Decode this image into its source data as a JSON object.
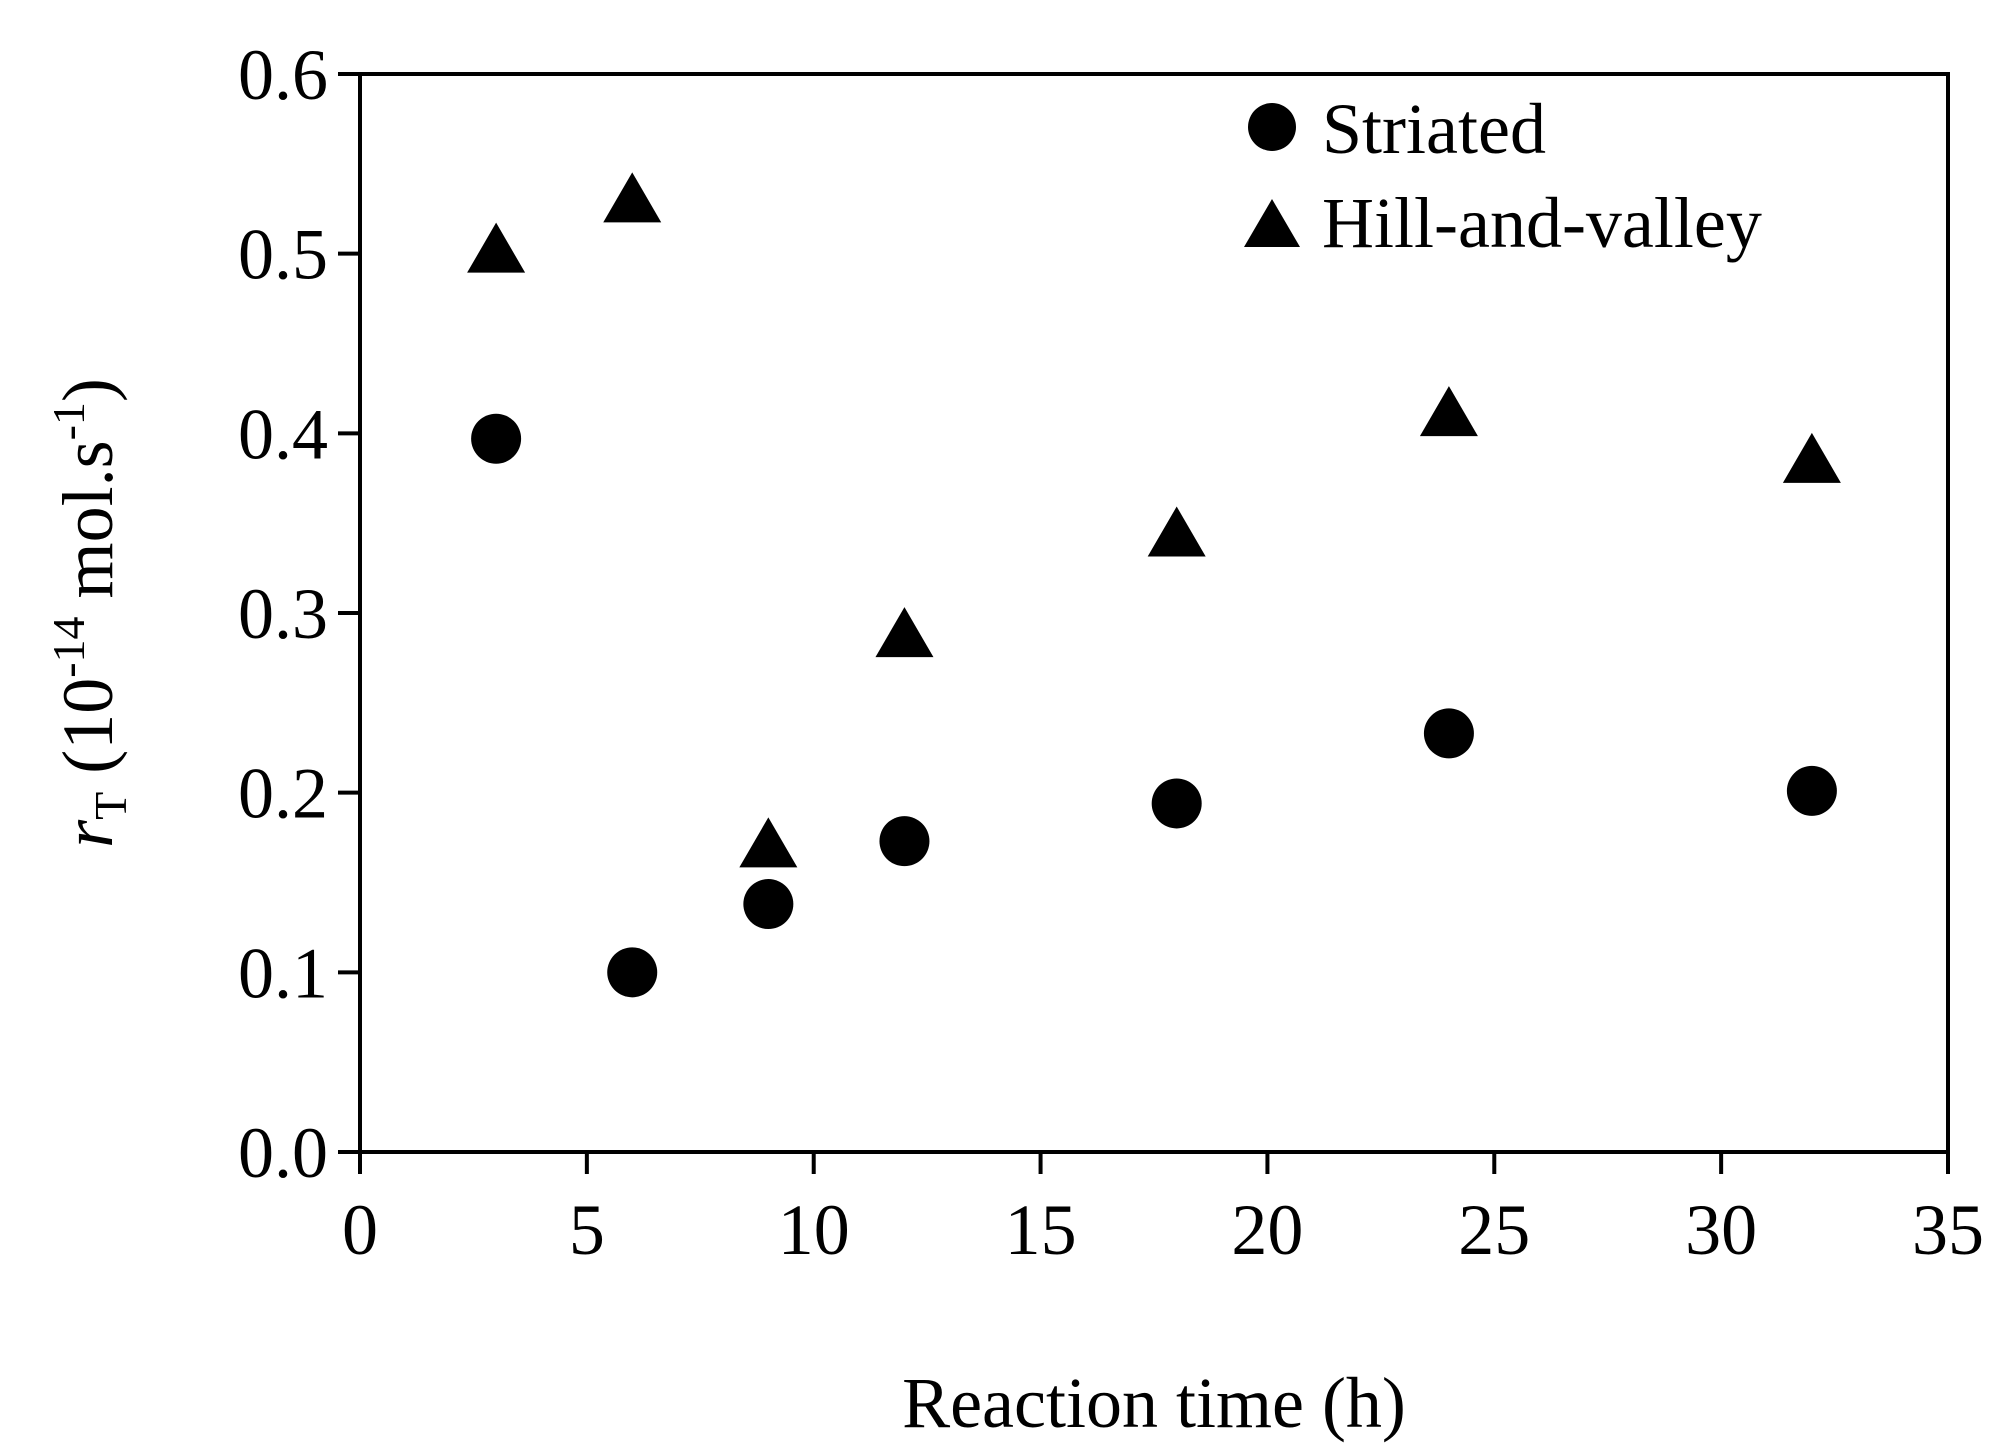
{
  "chart_data": {
    "type": "scatter",
    "title": "",
    "xlabel": "Reaction time (h)",
    "ylabel": {
      "symbol": "r",
      "subscript": "T",
      "open": "(10",
      "exponent1": "-14",
      "unit": " mol.s",
      "exponent2": "-1",
      "close": ")"
    },
    "xlim": [
      0,
      35
    ],
    "ylim": [
      0.0,
      0.6
    ],
    "xticks": [
      0,
      5,
      10,
      15,
      20,
      25,
      30,
      35
    ],
    "yticks": [
      0.0,
      0.1,
      0.2,
      0.3,
      0.4,
      0.5,
      0.6
    ],
    "xtick_labels": [
      "0",
      "5",
      "10",
      "15",
      "20",
      "25",
      "30",
      "35"
    ],
    "ytick_labels": [
      "0.0",
      "0.1",
      "0.2",
      "0.3",
      "0.4",
      "0.5",
      "0.6"
    ],
    "grid": false,
    "legend_position": "top-right",
    "series": [
      {
        "name": "Striated",
        "marker": "circle",
        "color": "#000000",
        "x": [
          3,
          6,
          9,
          12,
          18,
          24,
          32
        ],
        "y": [
          0.397,
          0.1,
          0.138,
          0.173,
          0.194,
          0.233,
          0.201
        ]
      },
      {
        "name": "Hill-and-valley",
        "marker": "triangle",
        "color": "#000000",
        "x": [
          3,
          6,
          9,
          12,
          18,
          24,
          32
        ],
        "y": [
          0.5,
          0.528,
          0.169,
          0.286,
          0.342,
          0.409,
          0.383
        ]
      }
    ]
  }
}
